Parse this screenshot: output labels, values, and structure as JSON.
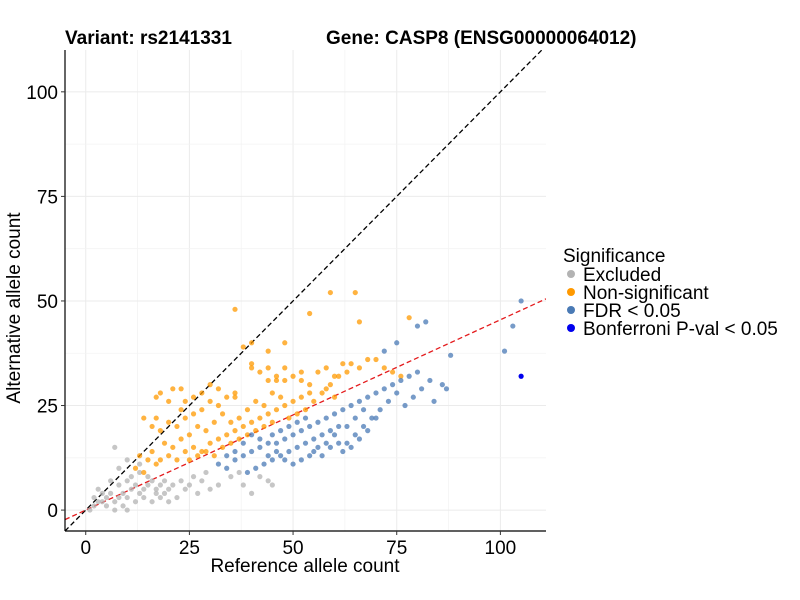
{
  "chart_data": {
    "type": "scatter",
    "title_left": "Variant: rs2141331",
    "title_right": "Gene: CASP8 (ENSG00000064012)",
    "xlabel": "Reference allele count",
    "ylabel": "Alternative allele count",
    "xlim": [
      -5,
      111
    ],
    "ylim": [
      -5,
      110
    ],
    "xticks": [
      0,
      25,
      50,
      75,
      100
    ],
    "yticks": [
      0,
      25,
      50,
      75,
      100
    ],
    "grid": true,
    "reference_lines": [
      {
        "name": "identity",
        "slope": 1,
        "intercept": 0,
        "color": "#000000",
        "dash": "dashed"
      },
      {
        "name": "fit",
        "slope": 0.455,
        "intercept": 0,
        "color": "#e41a1c",
        "dash": "dashed"
      }
    ],
    "legend": {
      "title": "Significance",
      "position": "right",
      "entries": [
        {
          "label": "Excluded",
          "color": "#b3b3b3"
        },
        {
          "label": "Non-significant",
          "color": "#ff9900"
        },
        {
          "label": "FDR < 0.05",
          "color": "#4a7ab5"
        },
        {
          "label": "Bonferroni P-val < 0.05",
          "color": "#0000ee"
        }
      ]
    },
    "series": [
      {
        "name": "Excluded",
        "color": "#b3b3b3",
        "points": [
          [
            1,
            0
          ],
          [
            2,
            1
          ],
          [
            2,
            3
          ],
          [
            3,
            2
          ],
          [
            3,
            5
          ],
          [
            4,
            2
          ],
          [
            4,
            4
          ],
          [
            5,
            3
          ],
          [
            5,
            1
          ],
          [
            6,
            4
          ],
          [
            6,
            7
          ],
          [
            7,
            2
          ],
          [
            7,
            0
          ],
          [
            7,
            15
          ],
          [
            8,
            3
          ],
          [
            8,
            6
          ],
          [
            9,
            1
          ],
          [
            9,
            4
          ],
          [
            10,
            0
          ],
          [
            10,
            3
          ],
          [
            10,
            7
          ],
          [
            11,
            5
          ],
          [
            11,
            8
          ],
          [
            12,
            2
          ],
          [
            12,
            6
          ],
          [
            13,
            4
          ],
          [
            13,
            9
          ],
          [
            14,
            3
          ],
          [
            14,
            5
          ],
          [
            15,
            6
          ],
          [
            15,
            8
          ],
          [
            16,
            2
          ],
          [
            16,
            7
          ],
          [
            17,
            5
          ],
          [
            17,
            4
          ],
          [
            18,
            3
          ],
          [
            18,
            6
          ],
          [
            19,
            7
          ],
          [
            19,
            4
          ],
          [
            20,
            2
          ],
          [
            20,
            5
          ],
          [
            21,
            6
          ],
          [
            22,
            3
          ],
          [
            23,
            7
          ],
          [
            24,
            5
          ],
          [
            25,
            6
          ],
          [
            27,
            4
          ],
          [
            28,
            7
          ],
          [
            30,
            5
          ],
          [
            26,
            8
          ],
          [
            38,
            6
          ],
          [
            40,
            4
          ],
          [
            42,
            8
          ],
          [
            44,
            7
          ],
          [
            45,
            6
          ],
          [
            37,
            9
          ],
          [
            29,
            9
          ],
          [
            32,
            6
          ],
          [
            35,
            8
          ],
          [
            10,
            12
          ],
          [
            13,
            11
          ],
          [
            8,
            10
          ]
        ]
      },
      {
        "name": "Non-significant",
        "color": "#ff9900",
        "points": [
          [
            14,
            22
          ],
          [
            17,
            22
          ],
          [
            17,
            27
          ],
          [
            18,
            28
          ],
          [
            21,
            29
          ],
          [
            23,
            29
          ],
          [
            23,
            24
          ],
          [
            16,
            20
          ],
          [
            18,
            19
          ],
          [
            20,
            21
          ],
          [
            22,
            20
          ],
          [
            24,
            22
          ],
          [
            26,
            23
          ],
          [
            28,
            24
          ],
          [
            30,
            26
          ],
          [
            32,
            25
          ],
          [
            34,
            27
          ],
          [
            36,
            28
          ],
          [
            27,
            20
          ],
          [
            25,
            18
          ],
          [
            19,
            16
          ],
          [
            21,
            15
          ],
          [
            23,
            17
          ],
          [
            29,
            19
          ],
          [
            31,
            21
          ],
          [
            33,
            23
          ],
          [
            35,
            21
          ],
          [
            37,
            22
          ],
          [
            39,
            24
          ],
          [
            41,
            26
          ],
          [
            43,
            25
          ],
          [
            45,
            28
          ],
          [
            47,
            27
          ],
          [
            24,
            14
          ],
          [
            26,
            15
          ],
          [
            28,
            14
          ],
          [
            30,
            16
          ],
          [
            32,
            17
          ],
          [
            34,
            18
          ],
          [
            36,
            19
          ],
          [
            38,
            20
          ],
          [
            40,
            21
          ],
          [
            42,
            22
          ],
          [
            44,
            23
          ],
          [
            46,
            24
          ],
          [
            48,
            25
          ],
          [
            50,
            26
          ],
          [
            52,
            27
          ],
          [
            54,
            28
          ],
          [
            20,
            13
          ],
          [
            22,
            12
          ],
          [
            16,
            14
          ],
          [
            15,
            12
          ],
          [
            18,
            12
          ],
          [
            12,
            10
          ],
          [
            14,
            9
          ],
          [
            13,
            13
          ],
          [
            17,
            11
          ],
          [
            25,
            12
          ],
          [
            27,
            13
          ],
          [
            29,
            14
          ],
          [
            31,
            13
          ],
          [
            33,
            15
          ],
          [
            35,
            16
          ],
          [
            37,
            17
          ],
          [
            39,
            18
          ],
          [
            41,
            19
          ],
          [
            43,
            20
          ],
          [
            45,
            21
          ],
          [
            49,
            22
          ],
          [
            51,
            23
          ],
          [
            53,
            24
          ],
          [
            55,
            26
          ],
          [
            57,
            28
          ],
          [
            59,
            30
          ],
          [
            61,
            32
          ],
          [
            63,
            33
          ],
          [
            38,
            39
          ],
          [
            40,
            34
          ],
          [
            42,
            33
          ],
          [
            44,
            34
          ],
          [
            46,
            31
          ],
          [
            48,
            31
          ],
          [
            50,
            32
          ],
          [
            52,
            31
          ],
          [
            54,
            30
          ],
          [
            56,
            33
          ],
          [
            58,
            34
          ],
          [
            60,
            32
          ],
          [
            62,
            35
          ],
          [
            64,
            35
          ],
          [
            66,
            34
          ],
          [
            68,
            36
          ],
          [
            70,
            36
          ],
          [
            72,
            34
          ],
          [
            74,
            33
          ],
          [
            76,
            32
          ],
          [
            78,
            46
          ],
          [
            54,
            47
          ],
          [
            59,
            52
          ],
          [
            65,
            52
          ],
          [
            36,
            48
          ],
          [
            66,
            45
          ],
          [
            40,
            35
          ],
          [
            48,
            40
          ],
          [
            40,
            40
          ],
          [
            44,
            38
          ],
          [
            30,
            30
          ],
          [
            26,
            27
          ],
          [
            20,
            26
          ],
          [
            24,
            26
          ],
          [
            32,
            29
          ],
          [
            28,
            28
          ],
          [
            36,
            27
          ],
          [
            44,
            31
          ],
          [
            46,
            32
          ],
          [
            52,
            33
          ],
          [
            48,
            34
          ],
          [
            58,
            29
          ],
          [
            60,
            27
          ]
        ]
      },
      {
        "name": "FDR < 0.05",
        "color": "#4a7ab5",
        "points": [
          [
            32,
            11
          ],
          [
            34,
            10
          ],
          [
            36,
            12
          ],
          [
            38,
            13
          ],
          [
            40,
            14
          ],
          [
            42,
            15
          ],
          [
            44,
            13
          ],
          [
            46,
            16
          ],
          [
            48,
            17
          ],
          [
            50,
            18
          ],
          [
            52,
            19
          ],
          [
            54,
            20
          ],
          [
            56,
            21
          ],
          [
            58,
            22
          ],
          [
            60,
            23
          ],
          [
            62,
            24
          ],
          [
            64,
            25
          ],
          [
            66,
            26
          ],
          [
            68,
            27
          ],
          [
            70,
            28
          ],
          [
            72,
            29
          ],
          [
            74,
            30
          ],
          [
            76,
            31
          ],
          [
            78,
            32
          ],
          [
            80,
            33
          ],
          [
            45,
            18
          ],
          [
            47,
            19
          ],
          [
            49,
            20
          ],
          [
            51,
            21
          ],
          [
            53,
            22
          ],
          [
            55,
            17
          ],
          [
            57,
            18
          ],
          [
            59,
            19
          ],
          [
            61,
            20
          ],
          [
            63,
            16
          ],
          [
            65,
            18
          ],
          [
            67,
            20
          ],
          [
            69,
            22
          ],
          [
            71,
            24
          ],
          [
            73,
            26
          ],
          [
            75,
            28
          ],
          [
            77,
            25
          ],
          [
            79,
            27
          ],
          [
            81,
            29
          ],
          [
            83,
            31
          ],
          [
            39,
            9
          ],
          [
            41,
            10
          ],
          [
            43,
            11
          ],
          [
            45,
            12
          ],
          [
            47,
            13
          ],
          [
            49,
            14
          ],
          [
            51,
            15
          ],
          [
            53,
            16
          ],
          [
            55,
            14
          ],
          [
            57,
            13
          ],
          [
            59,
            15
          ],
          [
            61,
            16
          ],
          [
            63,
            20
          ],
          [
            65,
            22
          ],
          [
            67,
            24
          ],
          [
            72,
            38
          ],
          [
            75,
            40
          ],
          [
            80,
            44
          ],
          [
            82,
            45
          ],
          [
            88,
            37
          ],
          [
            101,
            38
          ],
          [
            103,
            44
          ],
          [
            105,
            50
          ],
          [
            87,
            29
          ],
          [
            84,
            26
          ],
          [
            86,
            30
          ],
          [
            70,
            22
          ],
          [
            68,
            19
          ],
          [
            66,
            17
          ],
          [
            64,
            15
          ],
          [
            62,
            14
          ],
          [
            58,
            16
          ],
          [
            56,
            15
          ],
          [
            54,
            13
          ],
          [
            52,
            12
          ],
          [
            50,
            11
          ],
          [
            48,
            12
          ],
          [
            46,
            14
          ],
          [
            44,
            16
          ],
          [
            42,
            17
          ],
          [
            40,
            18
          ],
          [
            38,
            16
          ],
          [
            36,
            14
          ],
          [
            34,
            13
          ],
          [
            60,
            18
          ]
        ]
      },
      {
        "name": "Bonferroni P-val < 0.05",
        "color": "#0000ee",
        "points": [
          [
            105,
            32
          ]
        ]
      }
    ]
  }
}
